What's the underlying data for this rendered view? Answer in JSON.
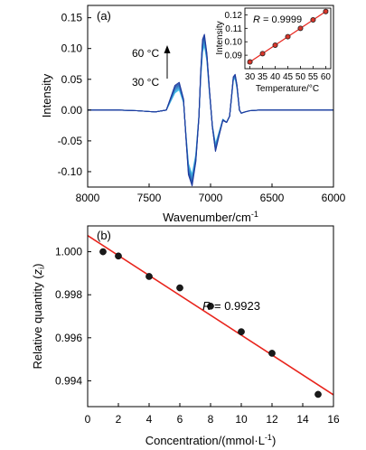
{
  "colors": {
    "axis": "#000000",
    "fit": "#e8241c",
    "point": "#1a1a1a",
    "inset_point": "#d9362b",
    "temp_hot": "#1f3a9e",
    "temp_cold": "#46c4ea"
  },
  "chart_data": [
    {
      "type": "line",
      "panel_label": "(a)",
      "xlabel": "Wavenumber/cm",
      "xlabel_sup": "-1",
      "ylabel": "Intensity",
      "xlim": [
        8000,
        6000
      ],
      "ylim": [
        -0.125,
        0.17
      ],
      "x_reversed": true,
      "x_ticks": [
        8000,
        7500,
        7000,
        6500,
        6000
      ],
      "y_ticks": [
        -0.1,
        -0.05,
        0.0,
        0.05,
        0.1,
        0.15
      ],
      "y_tick_labels": [
        "-0.10",
        "-0.05",
        "0.00",
        "0.05",
        "0.10",
        "0.15"
      ],
      "annotations": {
        "hot_label": "60 °C",
        "cold_label": "30 °C"
      },
      "series": [
        {
          "temperature": 30,
          "x": [
            8000,
            7750,
            7600,
            7450,
            7360,
            7290,
            7255,
            7220,
            7200,
            7180,
            7150,
            7120,
            7095,
            7080,
            7065,
            7050,
            7030,
            7010,
            6985,
            6960,
            6930,
            6900,
            6870,
            6845,
            6830,
            6815,
            6800,
            6785,
            6765,
            6750,
            6720,
            6680,
            6600,
            6400,
            6000
          ],
          "y": [
            0.0,
            0.0,
            -0.001,
            -0.003,
            0.0,
            0.028,
            0.033,
            0.012,
            -0.04,
            -0.087,
            -0.105,
            -0.072,
            -0.01,
            0.052,
            0.095,
            0.105,
            0.08,
            0.03,
            -0.025,
            -0.055,
            -0.035,
            -0.015,
            -0.02,
            -0.01,
            0.018,
            0.048,
            0.052,
            0.035,
            0.0,
            -0.005,
            -0.003,
            -0.001,
            0.0,
            0.0,
            0.0
          ]
        },
        {
          "temperature": 35,
          "x": [
            8000,
            7750,
            7600,
            7450,
            7360,
            7290,
            7255,
            7220,
            7200,
            7180,
            7150,
            7120,
            7095,
            7080,
            7065,
            7050,
            7030,
            7010,
            6985,
            6960,
            6930,
            6900,
            6870,
            6845,
            6830,
            6815,
            6800,
            6785,
            6765,
            6750,
            6720,
            6680,
            6600,
            6400,
            6000
          ],
          "y": [
            0.0,
            0.0,
            -0.001,
            -0.003,
            0.0,
            0.03,
            0.035,
            0.013,
            -0.041,
            -0.09,
            -0.108,
            -0.074,
            -0.01,
            0.054,
            0.098,
            0.108,
            0.082,
            0.031,
            -0.026,
            -0.057,
            -0.036,
            -0.015,
            -0.02,
            -0.01,
            0.019,
            0.049,
            0.053,
            0.036,
            0.0,
            -0.005,
            -0.003,
            -0.001,
            0.0,
            0.0,
            0.0
          ]
        },
        {
          "temperature": 40,
          "x": [
            8000,
            7750,
            7600,
            7450,
            7360,
            7290,
            7255,
            7220,
            7200,
            7180,
            7150,
            7120,
            7095,
            7080,
            7065,
            7050,
            7030,
            7010,
            6985,
            6960,
            6930,
            6900,
            6870,
            6845,
            6830,
            6815,
            6800,
            6785,
            6765,
            6750,
            6720,
            6680,
            6600,
            6400,
            6000
          ],
          "y": [
            0.0,
            0.0,
            -0.001,
            -0.003,
            0.0,
            0.032,
            0.037,
            0.014,
            -0.042,
            -0.093,
            -0.111,
            -0.076,
            -0.011,
            0.056,
            0.102,
            0.111,
            0.084,
            0.032,
            -0.026,
            -0.059,
            -0.037,
            -0.015,
            -0.02,
            -0.01,
            0.019,
            0.05,
            0.054,
            0.037,
            0.0,
            -0.005,
            -0.003,
            -0.001,
            0.0,
            0.0,
            0.0
          ]
        },
        {
          "temperature": 45,
          "x": [
            8000,
            7750,
            7600,
            7450,
            7360,
            7290,
            7255,
            7220,
            7200,
            7180,
            7150,
            7120,
            7095,
            7080,
            7065,
            7050,
            7030,
            7010,
            6985,
            6960,
            6930,
            6900,
            6870,
            6845,
            6830,
            6815,
            6800,
            6785,
            6765,
            6750,
            6720,
            6680,
            6600,
            6400,
            6000
          ],
          "y": [
            0.0,
            0.0,
            -0.001,
            -0.003,
            0.0,
            0.034,
            0.039,
            0.015,
            -0.043,
            -0.096,
            -0.114,
            -0.078,
            -0.011,
            0.058,
            0.105,
            0.114,
            0.086,
            0.033,
            -0.027,
            -0.061,
            -0.038,
            -0.016,
            -0.02,
            -0.01,
            0.02,
            0.051,
            0.055,
            0.038,
            0.0,
            -0.005,
            -0.003,
            -0.001,
            0.0,
            0.0,
            0.0
          ]
        },
        {
          "temperature": 50,
          "x": [
            8000,
            7750,
            7600,
            7450,
            7360,
            7290,
            7255,
            7220,
            7200,
            7180,
            7150,
            7120,
            7095,
            7080,
            7065,
            7050,
            7030,
            7010,
            6985,
            6960,
            6930,
            6900,
            6870,
            6845,
            6830,
            6815,
            6800,
            6785,
            6765,
            6750,
            6720,
            6680,
            6600,
            6400,
            6000
          ],
          "y": [
            0.0,
            0.0,
            -0.001,
            -0.003,
            0.0,
            0.036,
            0.041,
            0.016,
            -0.044,
            -0.099,
            -0.117,
            -0.08,
            -0.012,
            0.06,
            0.109,
            0.117,
            0.088,
            0.034,
            -0.027,
            -0.063,
            -0.039,
            -0.016,
            -0.02,
            -0.01,
            0.02,
            0.052,
            0.056,
            0.039,
            0.0,
            -0.005,
            -0.003,
            -0.001,
            0.0,
            0.0,
            0.0
          ]
        },
        {
          "temperature": 55,
          "x": [
            8000,
            7750,
            7600,
            7450,
            7360,
            7290,
            7255,
            7220,
            7200,
            7180,
            7150,
            7120,
            7095,
            7080,
            7065,
            7050,
            7030,
            7010,
            6985,
            6960,
            6930,
            6900,
            6870,
            6845,
            6830,
            6815,
            6800,
            6785,
            6765,
            6750,
            6720,
            6680,
            6600,
            6400,
            6000
          ],
          "y": [
            0.0,
            0.0,
            -0.001,
            -0.003,
            0.0,
            0.038,
            0.043,
            0.017,
            -0.045,
            -0.102,
            -0.12,
            -0.082,
            -0.012,
            0.062,
            0.112,
            0.12,
            0.09,
            0.035,
            -0.028,
            -0.065,
            -0.04,
            -0.016,
            -0.02,
            -0.01,
            0.021,
            0.053,
            0.057,
            0.04,
            0.0,
            -0.005,
            -0.003,
            -0.001,
            0.0,
            0.0,
            0.0
          ]
        },
        {
          "temperature": 60,
          "x": [
            8000,
            7750,
            7600,
            7450,
            7360,
            7290,
            7255,
            7220,
            7200,
            7180,
            7150,
            7120,
            7095,
            7080,
            7065,
            7050,
            7030,
            7010,
            6985,
            6960,
            6930,
            6900,
            6870,
            6845,
            6830,
            6815,
            6800,
            6785,
            6765,
            6750,
            6720,
            6680,
            6600,
            6400,
            6000
          ],
          "y": [
            0.0,
            0.0,
            -0.001,
            -0.003,
            0.0,
            0.04,
            0.045,
            0.018,
            -0.046,
            -0.105,
            -0.123,
            -0.084,
            -0.013,
            0.064,
            0.115,
            0.123,
            0.092,
            0.036,
            -0.028,
            -0.067,
            -0.041,
            -0.017,
            -0.02,
            -0.01,
            0.021,
            0.054,
            0.058,
            0.041,
            0.0,
            -0.005,
            -0.003,
            -0.001,
            0.0,
            0.0,
            0.0
          ]
        }
      ]
    },
    {
      "type": "scatter",
      "inset_of": "(a)",
      "annotation_r": "R",
      "annotation_value": " = 0.9999",
      "xlabel": "Temperature/°C",
      "ylabel": "Intensity",
      "xlim": [
        28,
        62
      ],
      "ylim": [
        0.08,
        0.125
      ],
      "x_ticks": [
        30,
        35,
        40,
        45,
        50,
        55,
        60
      ],
      "y_ticks": [
        0.09,
        0.1,
        0.11,
        0.12
      ],
      "y_tick_labels": [
        "0.09",
        "0.10",
        "0.11",
        "0.12"
      ],
      "x": [
        30,
        35,
        40,
        45,
        50,
        55,
        60
      ],
      "y": [
        0.085,
        0.0912,
        0.0975,
        0.1038,
        0.11,
        0.1163,
        0.1225
      ],
      "fit_line": {
        "x": [
          29,
          61
        ],
        "y": [
          0.0838,
          0.1237
        ]
      }
    },
    {
      "type": "scatter",
      "panel_label": "(b)",
      "annotation_r": "R",
      "annotation_value": " = 0.9923",
      "xlabel": "Concentration/(mmol·L",
      "xlabel_sup": "-1",
      "xlabel_end": ")",
      "ylabel": "Relative quantity (",
      "ylabel_italic": "z",
      "ylabel_sub": "i",
      "ylabel_end": ")",
      "xlim": [
        0,
        16
      ],
      "ylim": [
        0.9928,
        1.0012
      ],
      "x_ticks": [
        0,
        2,
        4,
        6,
        8,
        10,
        12,
        14,
        16
      ],
      "y_ticks": [
        0.994,
        0.996,
        0.998,
        1.0
      ],
      "y_tick_labels": [
        "0.994",
        "0.996",
        "0.998",
        "1.000"
      ],
      "x": [
        1,
        2,
        4,
        6,
        8,
        10,
        12,
        15
      ],
      "y": [
        1.0,
        0.9998,
        0.99885,
        0.99832,
        0.99747,
        0.99628,
        0.99528,
        0.99337
      ],
      "fit_line": {
        "x": [
          0,
          16
        ],
        "y": [
          1.00075,
          0.99335
        ]
      }
    }
  ]
}
